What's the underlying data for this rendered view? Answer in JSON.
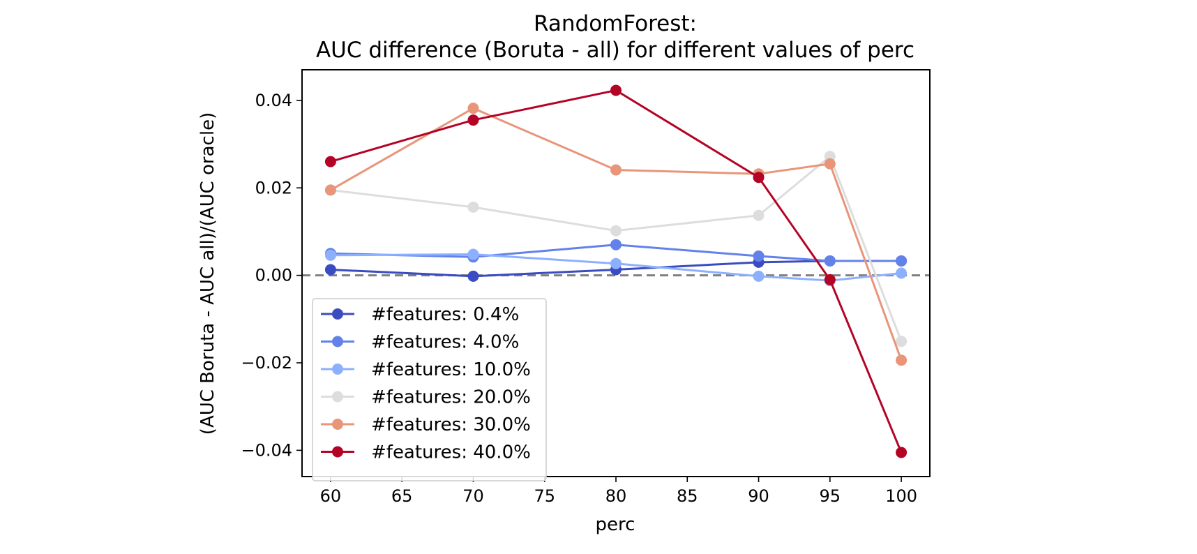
{
  "chart_data": {
    "type": "line",
    "title": "RandomForest:",
    "subtitle": "AUC difference (Boruta - all) for different values of perc",
    "xlabel": "perc",
    "ylabel": "(AUC Boruta - AUC all)/(AUC oracle)",
    "xlim": [
      58,
      102
    ],
    "ylim": [
      -0.046,
      0.047
    ],
    "xticks": [
      60,
      65,
      70,
      75,
      80,
      85,
      90,
      95,
      100
    ],
    "xtick_labels": [
      "60",
      "65",
      "70",
      "75",
      "80",
      "85",
      "90",
      "95",
      "100"
    ],
    "yticks": [
      -0.04,
      -0.02,
      0.0,
      0.02,
      0.04
    ],
    "ytick_labels": [
      "−0.04",
      "−0.02",
      "0.00",
      "0.02",
      "0.04"
    ],
    "reference_line": {
      "y": 0.0,
      "style": "dashed",
      "color": "#808080"
    },
    "legend_position": "lower-left",
    "grid": false,
    "x": [
      60,
      70,
      80,
      90,
      95,
      100
    ],
    "series": [
      {
        "name": "#features: 0.4%",
        "color": "#3b4cc0",
        "values": [
          0.0013,
          -0.0002,
          0.0013,
          0.003,
          0.0033,
          0.0033
        ]
      },
      {
        "name": "#features: 4.0%",
        "color": "#6282ea",
        "values": [
          0.005,
          0.0042,
          0.007,
          0.0044,
          0.0033,
          0.0033
        ]
      },
      {
        "name": "#features: 10.0%",
        "color": "#8db0fe",
        "values": [
          0.0046,
          0.0048,
          0.0027,
          -0.0002,
          -0.0012,
          0.0005
        ]
      },
      {
        "name": "#features: 20.0%",
        "color": "#dddddd",
        "values": [
          0.0195,
          0.0156,
          0.0102,
          0.0137,
          0.0272,
          -0.0151
        ]
      },
      {
        "name": "#features: 30.0%",
        "color": "#e8957a",
        "values": [
          0.0195,
          0.0382,
          0.0241,
          0.0232,
          0.0255,
          -0.0194
        ]
      },
      {
        "name": "#features: 40.0%",
        "color": "#b40426",
        "values": [
          0.026,
          0.0355,
          0.0423,
          0.0224,
          -0.001,
          -0.0405
        ]
      }
    ]
  }
}
